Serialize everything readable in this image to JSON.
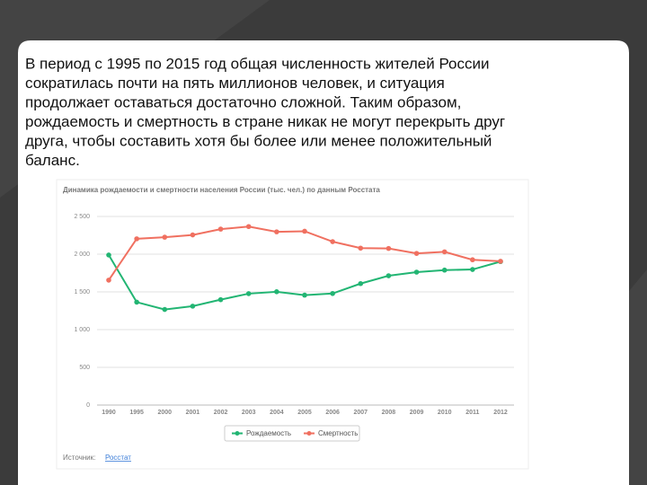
{
  "slide_text": [
    "В период с 1995 по 2015 год общая численность жителей России",
    "сократилась почти на пять миллионов человек, и ситуация",
    "продолжает оставаться достаточно сложной. Таким образом,",
    "рождаемость и смертность в стране никак не могут перекрыть друг",
    "друга, чтобы составить хотя бы более или менее положительный",
    "баланс."
  ],
  "chart_data": {
    "type": "line",
    "title": "Динамика рождаемости и смертности населения России (тыс. чел.) по данным Росстата",
    "categories": [
      "1990",
      "1995",
      "2000",
      "2001",
      "2002",
      "2003",
      "2004",
      "2005",
      "2006",
      "2007",
      "2008",
      "2009",
      "2010",
      "2011",
      "2012"
    ],
    "series": [
      {
        "name": "Рождаемость",
        "color": "#22b573",
        "values": [
          1989,
          1364,
          1267,
          1311,
          1397,
          1477,
          1502,
          1457,
          1479,
          1610,
          1714,
          1762,
          1789,
          1797,
          1902
        ]
      },
      {
        "name": "Смертность",
        "color": "#f07060",
        "values": [
          1656,
          2204,
          2225,
          2255,
          2332,
          2366,
          2296,
          2304,
          2166,
          2080,
          2076,
          2010,
          2031,
          1926,
          1906
        ]
      }
    ],
    "ylim": [
      0,
      2500
    ],
    "yticks": [
      0,
      500,
      {
        "value": 1000,
        "label": "1 000"
      },
      {
        "value": 1500,
        "label": "1 500"
      },
      {
        "value": 2000,
        "label": "2 000"
      },
      {
        "value": 2500,
        "label": "2 500"
      }
    ],
    "grid": true,
    "legend": "bottom",
    "source_label": "Источник:",
    "source": "Росстат"
  }
}
